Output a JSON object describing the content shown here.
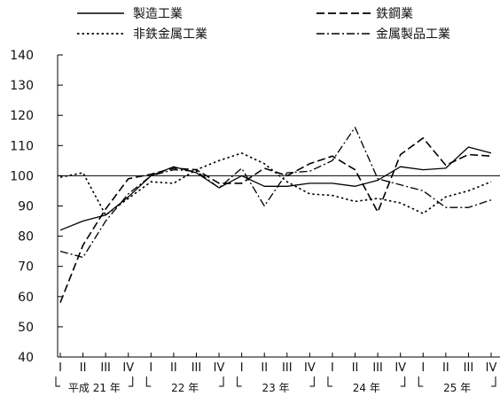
{
  "chart_data": {
    "type": "line",
    "title": "",
    "xlabel": "",
    "ylabel": "",
    "ylim": [
      40,
      140
    ],
    "yticks": [
      40,
      50,
      60,
      70,
      80,
      90,
      100,
      110,
      120,
      130,
      140
    ],
    "reference_line": 100,
    "legend_placement": "top",
    "categories": [
      "I",
      "II",
      "III",
      "IV",
      "I",
      "II",
      "III",
      "IV",
      "I",
      "II",
      "III",
      "IV",
      "I",
      "II",
      "III",
      "IV",
      "I",
      "II",
      "III",
      "IV"
    ],
    "year_groups": [
      {
        "label": "平成 21 年",
        "start": 0,
        "end": 3
      },
      {
        "label": "22 年",
        "start": 4,
        "end": 7
      },
      {
        "label": "23 年",
        "start": 8,
        "end": 11
      },
      {
        "label": "24 年",
        "start": 12,
        "end": 15
      },
      {
        "label": "25 年",
        "start": 16,
        "end": 19
      }
    ],
    "series": [
      {
        "name": "製造工業",
        "dash": "",
        "stroke_width": 1.3,
        "values": [
          82,
          85,
          87,
          93,
          100,
          103,
          101,
          96,
          100,
          96.5,
          96.5,
          97.5,
          97.5,
          96.5,
          98.5,
          103,
          102,
          102.5,
          109.5,
          107.5
        ]
      },
      {
        "name": "鉄鋼業",
        "dash": "9,4",
        "stroke_width": 1.6,
        "values": [
          58,
          77,
          89,
          99,
          100.5,
          102.5,
          102,
          97.5,
          97.5,
          102.5,
          100,
          104,
          106.5,
          102,
          88,
          107,
          112.5,
          103.5,
          107,
          106.5
        ]
      },
      {
        "name": "非鉄金属工業",
        "dash": "2.5,3",
        "stroke_width": 1.6,
        "values": [
          99.5,
          101,
          87,
          92.5,
          98,
          97.5,
          102,
          105,
          107.5,
          104,
          98,
          94,
          93.5,
          91.5,
          92.5,
          91,
          87.5,
          93,
          95,
          98
        ]
      },
      {
        "name": "金属製品工業",
        "dash": "9,3,2,3",
        "stroke_width": 1.3,
        "values": [
          75,
          73,
          85,
          94,
          100,
          102,
          101.5,
          96,
          102.5,
          90,
          101,
          101.5,
          105,
          116,
          99,
          97,
          95,
          89.5,
          89.5,
          92
        ]
      }
    ]
  }
}
